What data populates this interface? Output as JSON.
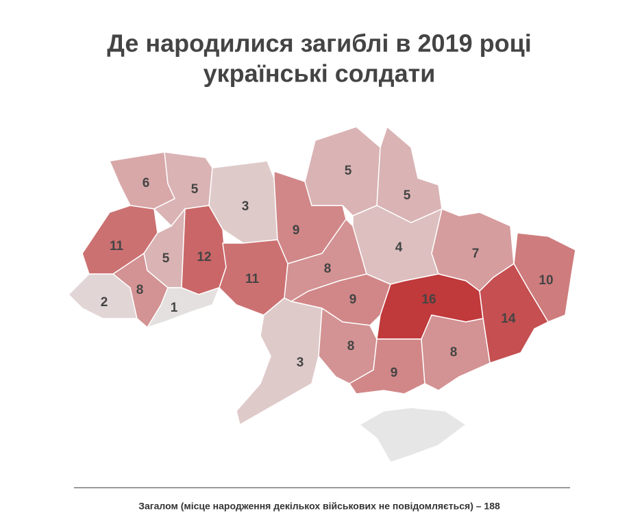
{
  "chart_data": {
    "type": "choropleth",
    "title": [
      "Де народилися загиблі в 2019 році",
      "українські солдати"
    ],
    "values": [
      6,
      5,
      3,
      9,
      5,
      5,
      11,
      5,
      12,
      11,
      8,
      4,
      7,
      10,
      2,
      8,
      1,
      9,
      16,
      14,
      3,
      8,
      9,
      8
    ],
    "color_range": [
      "#e4e0e0",
      "#c0393b"
    ],
    "footer": "Загалом (місце народження декількох військових не повідомляється) – 188"
  }
}
